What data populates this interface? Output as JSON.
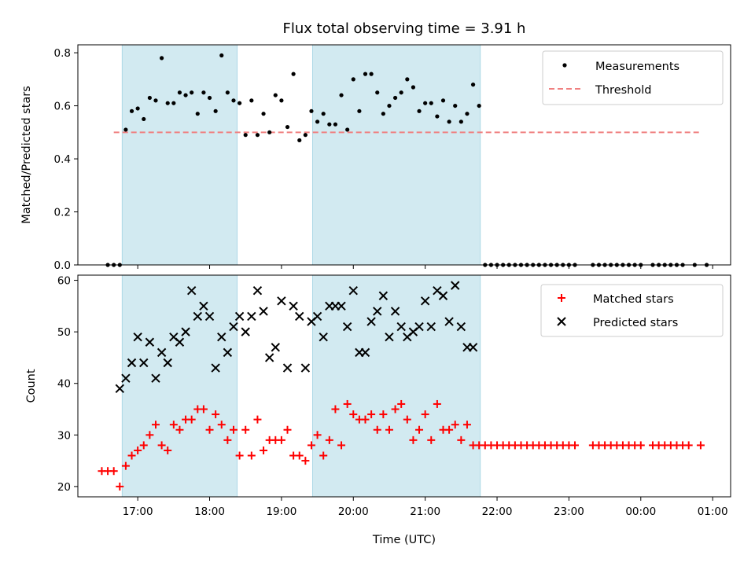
{
  "title": "Flux total observing time = 3.91 h",
  "chart_data": [
    {
      "type": "scatter",
      "ylabel": "Matched/Predicted stars",
      "ylim": [
        0,
        0.83
      ],
      "yticks": [
        "0.0",
        "0.2",
        "0.4",
        "0.6",
        "0.8"
      ],
      "ytick_values": [
        0,
        0.2,
        0.4,
        0.6,
        0.8
      ],
      "legend_position": "top-right",
      "legend": [
        "Measurements",
        "Threshold"
      ],
      "threshold": {
        "name": "Threshold",
        "y": 0.5,
        "x_start": "16:40",
        "x_end": "00:50",
        "style": "dashed",
        "color": "#f08080"
      },
      "series": [
        {
          "name": "Measurements",
          "color": "#000000",
          "marker": "dot",
          "points": [
            [
              "16:35",
              0
            ],
            [
              "16:40",
              0
            ],
            [
              "16:45",
              0
            ],
            [
              "16:50",
              0.51
            ],
            [
              "16:55",
              0.58
            ],
            [
              "17:00",
              0.59
            ],
            [
              "17:05",
              0.55
            ],
            [
              "17:10",
              0.63
            ],
            [
              "17:15",
              0.62
            ],
            [
              "17:20",
              0.78
            ],
            [
              "17:25",
              0.61
            ],
            [
              "17:30",
              0.61
            ],
            [
              "17:35",
              0.65
            ],
            [
              "17:40",
              0.64
            ],
            [
              "17:45",
              0.65
            ],
            [
              "17:50",
              0.57
            ],
            [
              "17:55",
              0.65
            ],
            [
              "18:00",
              0.63
            ],
            [
              "18:05",
              0.58
            ],
            [
              "18:10",
              0.79
            ],
            [
              "18:15",
              0.65
            ],
            [
              "18:20",
              0.62
            ],
            [
              "18:25",
              0.61
            ],
            [
              "18:30",
              0.49
            ],
            [
              "18:35",
              0.62
            ],
            [
              "18:40",
              0.49
            ],
            [
              "18:45",
              0.57
            ],
            [
              "18:50",
              0.5
            ],
            [
              "18:55",
              0.64
            ],
            [
              "19:00",
              0.62
            ],
            [
              "19:05",
              0.52
            ],
            [
              "19:10",
              0.72
            ],
            [
              "19:15",
              0.47
            ],
            [
              "19:20",
              0.49
            ],
            [
              "19:25",
              0.58
            ],
            [
              "19:30",
              0.54
            ],
            [
              "19:35",
              0.57
            ],
            [
              "19:40",
              0.53
            ],
            [
              "19:45",
              0.53
            ],
            [
              "19:50",
              0.64
            ],
            [
              "19:55",
              0.51
            ],
            [
              "20:00",
              0.7
            ],
            [
              "20:05",
              0.58
            ],
            [
              "20:10",
              0.72
            ],
            [
              "20:15",
              0.72
            ],
            [
              "20:20",
              0.65
            ],
            [
              "20:25",
              0.57
            ],
            [
              "20:30",
              0.6
            ],
            [
              "20:35",
              0.63
            ],
            [
              "20:40",
              0.65
            ],
            [
              "20:45",
              0.7
            ],
            [
              "20:50",
              0.67
            ],
            [
              "20:55",
              0.58
            ],
            [
              "21:00",
              0.61
            ],
            [
              "21:05",
              0.61
            ],
            [
              "21:10",
              0.56
            ],
            [
              "21:15",
              0.62
            ],
            [
              "21:20",
              0.54
            ],
            [
              "21:25",
              0.6
            ],
            [
              "21:30",
              0.54
            ],
            [
              "21:35",
              0.57
            ],
            [
              "21:40",
              0.68
            ],
            [
              "21:45",
              0.6
            ],
            [
              "21:50",
              0
            ],
            [
              "21:55",
              0
            ],
            [
              "22:00",
              0
            ],
            [
              "22:05",
              0
            ],
            [
              "22:10",
              0
            ],
            [
              "22:15",
              0
            ],
            [
              "22:20",
              0
            ],
            [
              "22:25",
              0
            ],
            [
              "22:30",
              0
            ],
            [
              "22:35",
              0
            ],
            [
              "22:40",
              0
            ],
            [
              "22:45",
              0
            ],
            [
              "22:50",
              0
            ],
            [
              "22:55",
              0
            ],
            [
              "23:00",
              0
            ],
            [
              "23:05",
              0
            ],
            [
              "23:20",
              0
            ],
            [
              "23:25",
              0
            ],
            [
              "23:30",
              0
            ],
            [
              "23:35",
              0
            ],
            [
              "23:40",
              0
            ],
            [
              "23:45",
              0
            ],
            [
              "23:50",
              0
            ],
            [
              "23:55",
              0
            ],
            [
              "00:00",
              0
            ],
            [
              "00:10",
              0
            ],
            [
              "00:15",
              0
            ],
            [
              "00:20",
              0
            ],
            [
              "00:25",
              0
            ],
            [
              "00:30",
              0
            ],
            [
              "00:35",
              0
            ],
            [
              "00:45",
              0
            ],
            [
              "00:55",
              0
            ]
          ]
        }
      ]
    },
    {
      "type": "scatter",
      "ylabel": "Count",
      "xlabel": "Time (UTC)",
      "ylim": [
        18,
        61
      ],
      "yticks": [
        "20",
        "30",
        "40",
        "50",
        "60"
      ],
      "ytick_values": [
        20,
        30,
        40,
        50,
        60
      ],
      "legend_position": "top-right",
      "legend": [
        "Matched stars",
        "Predicted stars"
      ],
      "series": [
        {
          "name": "Matched stars",
          "color": "#ff0000",
          "marker": "plus",
          "points": [
            [
              "16:30",
              23
            ],
            [
              "16:35",
              23
            ],
            [
              "16:40",
              23
            ],
            [
              "16:45",
              20
            ],
            [
              "16:50",
              24
            ],
            [
              "16:55",
              26
            ],
            [
              "17:00",
              27
            ],
            [
              "17:05",
              28
            ],
            [
              "17:10",
              30
            ],
            [
              "17:15",
              32
            ],
            [
              "17:20",
              28
            ],
            [
              "17:25",
              27
            ],
            [
              "17:30",
              32
            ],
            [
              "17:35",
              31
            ],
            [
              "17:40",
              33
            ],
            [
              "17:45",
              33
            ],
            [
              "17:50",
              35
            ],
            [
              "17:55",
              35
            ],
            [
              "18:00",
              31
            ],
            [
              "18:05",
              34
            ],
            [
              "18:10",
              32
            ],
            [
              "18:15",
              29
            ],
            [
              "18:20",
              31
            ],
            [
              "18:25",
              26
            ],
            [
              "18:30",
              31
            ],
            [
              "18:35",
              26
            ],
            [
              "18:40",
              33
            ],
            [
              "18:45",
              27
            ],
            [
              "18:50",
              29
            ],
            [
              "18:55",
              29
            ],
            [
              "19:00",
              29
            ],
            [
              "19:05",
              31
            ],
            [
              "19:10",
              26
            ],
            [
              "19:15",
              26
            ],
            [
              "19:20",
              25
            ],
            [
              "19:25",
              28
            ],
            [
              "19:30",
              30
            ],
            [
              "19:35",
              26
            ],
            [
              "19:40",
              29
            ],
            [
              "19:45",
              35
            ],
            [
              "19:50",
              28
            ],
            [
              "19:55",
              36
            ],
            [
              "20:00",
              34
            ],
            [
              "20:05",
              33
            ],
            [
              "20:10",
              33
            ],
            [
              "20:15",
              34
            ],
            [
              "20:20",
              31
            ],
            [
              "20:25",
              34
            ],
            [
              "20:30",
              31
            ],
            [
              "20:35",
              35
            ],
            [
              "20:40",
              36
            ],
            [
              "20:45",
              33
            ],
            [
              "20:50",
              29
            ],
            [
              "20:55",
              31
            ],
            [
              "21:00",
              34
            ],
            [
              "21:05",
              29
            ],
            [
              "21:10",
              36
            ],
            [
              "21:15",
              31
            ],
            [
              "21:20",
              31
            ],
            [
              "21:25",
              32
            ],
            [
              "21:30",
              29
            ],
            [
              "21:35",
              32
            ],
            [
              "21:40",
              28
            ],
            [
              "21:45",
              28
            ],
            [
              "21:50",
              28
            ],
            [
              "21:55",
              28
            ],
            [
              "22:00",
              28
            ],
            [
              "22:05",
              28
            ],
            [
              "22:10",
              28
            ],
            [
              "22:15",
              28
            ],
            [
              "22:20",
              28
            ],
            [
              "22:25",
              28
            ],
            [
              "22:30",
              28
            ],
            [
              "22:35",
              28
            ],
            [
              "22:40",
              28
            ],
            [
              "22:45",
              28
            ],
            [
              "22:50",
              28
            ],
            [
              "22:55",
              28
            ],
            [
              "23:00",
              28
            ],
            [
              "23:05",
              28
            ],
            [
              "23:20",
              28
            ],
            [
              "23:25",
              28
            ],
            [
              "23:30",
              28
            ],
            [
              "23:35",
              28
            ],
            [
              "23:40",
              28
            ],
            [
              "23:45",
              28
            ],
            [
              "23:50",
              28
            ],
            [
              "23:55",
              28
            ],
            [
              "00:00",
              28
            ],
            [
              "00:10",
              28
            ],
            [
              "00:15",
              28
            ],
            [
              "00:20",
              28
            ],
            [
              "00:25",
              28
            ],
            [
              "00:30",
              28
            ],
            [
              "00:35",
              28
            ],
            [
              "00:40",
              28
            ],
            [
              "00:50",
              28
            ]
          ]
        },
        {
          "name": "Predicted stars",
          "color": "#000000",
          "marker": "x",
          "points": [
            [
              "16:45",
              39
            ],
            [
              "16:50",
              41
            ],
            [
              "16:55",
              44
            ],
            [
              "17:00",
              49
            ],
            [
              "17:05",
              44
            ],
            [
              "17:10",
              48
            ],
            [
              "17:15",
              41
            ],
            [
              "17:20",
              46
            ],
            [
              "17:25",
              44
            ],
            [
              "17:30",
              49
            ],
            [
              "17:35",
              48
            ],
            [
              "17:40",
              50
            ],
            [
              "17:45",
              58
            ],
            [
              "17:50",
              53
            ],
            [
              "17:55",
              55
            ],
            [
              "18:00",
              53
            ],
            [
              "18:05",
              43
            ],
            [
              "18:10",
              49
            ],
            [
              "18:15",
              46
            ],
            [
              "18:20",
              51
            ],
            [
              "18:25",
              53
            ],
            [
              "18:30",
              50
            ],
            [
              "18:35",
              53
            ],
            [
              "18:40",
              58
            ],
            [
              "18:45",
              54
            ],
            [
              "18:50",
              45
            ],
            [
              "18:55",
              47
            ],
            [
              "19:00",
              56
            ],
            [
              "19:05",
              43
            ],
            [
              "19:10",
              55
            ],
            [
              "19:15",
              53
            ],
            [
              "19:20",
              43
            ],
            [
              "19:25",
              52
            ],
            [
              "19:30",
              53
            ],
            [
              "19:35",
              49
            ],
            [
              "19:40",
              55
            ],
            [
              "19:45",
              55
            ],
            [
              "19:50",
              55
            ],
            [
              "19:55",
              51
            ],
            [
              "20:00",
              58
            ],
            [
              "20:05",
              46
            ],
            [
              "20:10",
              46
            ],
            [
              "20:15",
              52
            ],
            [
              "20:20",
              54
            ],
            [
              "20:25",
              57
            ],
            [
              "20:30",
              49
            ],
            [
              "20:35",
              54
            ],
            [
              "20:40",
              51
            ],
            [
              "20:45",
              49
            ],
            [
              "20:50",
              50
            ],
            [
              "20:55",
              51
            ],
            [
              "21:00",
              56
            ],
            [
              "21:05",
              51
            ],
            [
              "21:10",
              58
            ],
            [
              "21:15",
              57
            ],
            [
              "21:20",
              52
            ],
            [
              "21:25",
              59
            ],
            [
              "21:30",
              51
            ],
            [
              "21:35",
              47
            ],
            [
              "21:40",
              47
            ]
          ]
        }
      ]
    }
  ],
  "shaded_intervals": [
    [
      "16:47",
      "18:23"
    ],
    [
      "19:26",
      "21:46"
    ]
  ],
  "shade_color": "#add8e6",
  "x_axis": {
    "start": "16:10",
    "end": "01:15",
    "tick_labels": [
      "17:00",
      "18:00",
      "19:00",
      "20:00",
      "21:00",
      "22:00",
      "23:00",
      "00:00",
      "01:00"
    ]
  }
}
